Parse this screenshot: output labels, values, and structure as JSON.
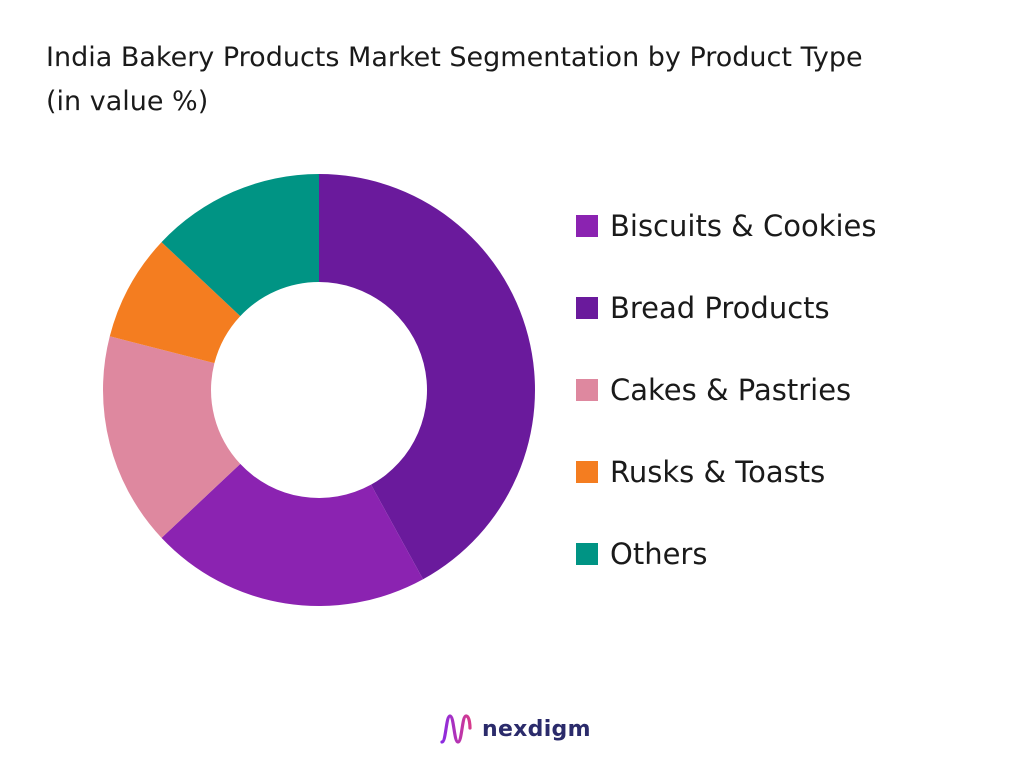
{
  "chart_data": {
    "type": "pie",
    "title": "India Bakery Products Market Segmentation by Product Type",
    "subtitle": "(in value %)",
    "donut": true,
    "legend_position": "right",
    "categories": [
      "Biscuits & Cookies",
      "Bread Products",
      "Cakes & Pastries",
      "Rusks & Toasts",
      "Others"
    ],
    "values": [
      21,
      42,
      16,
      8,
      13
    ],
    "colors": [
      "#8b23b1",
      "#6a1a9c",
      "#de889f",
      "#f47d20",
      "#009484"
    ]
  },
  "brand": {
    "name": "nexdigm",
    "logo_icon": "nexdigm-logo-icon"
  }
}
